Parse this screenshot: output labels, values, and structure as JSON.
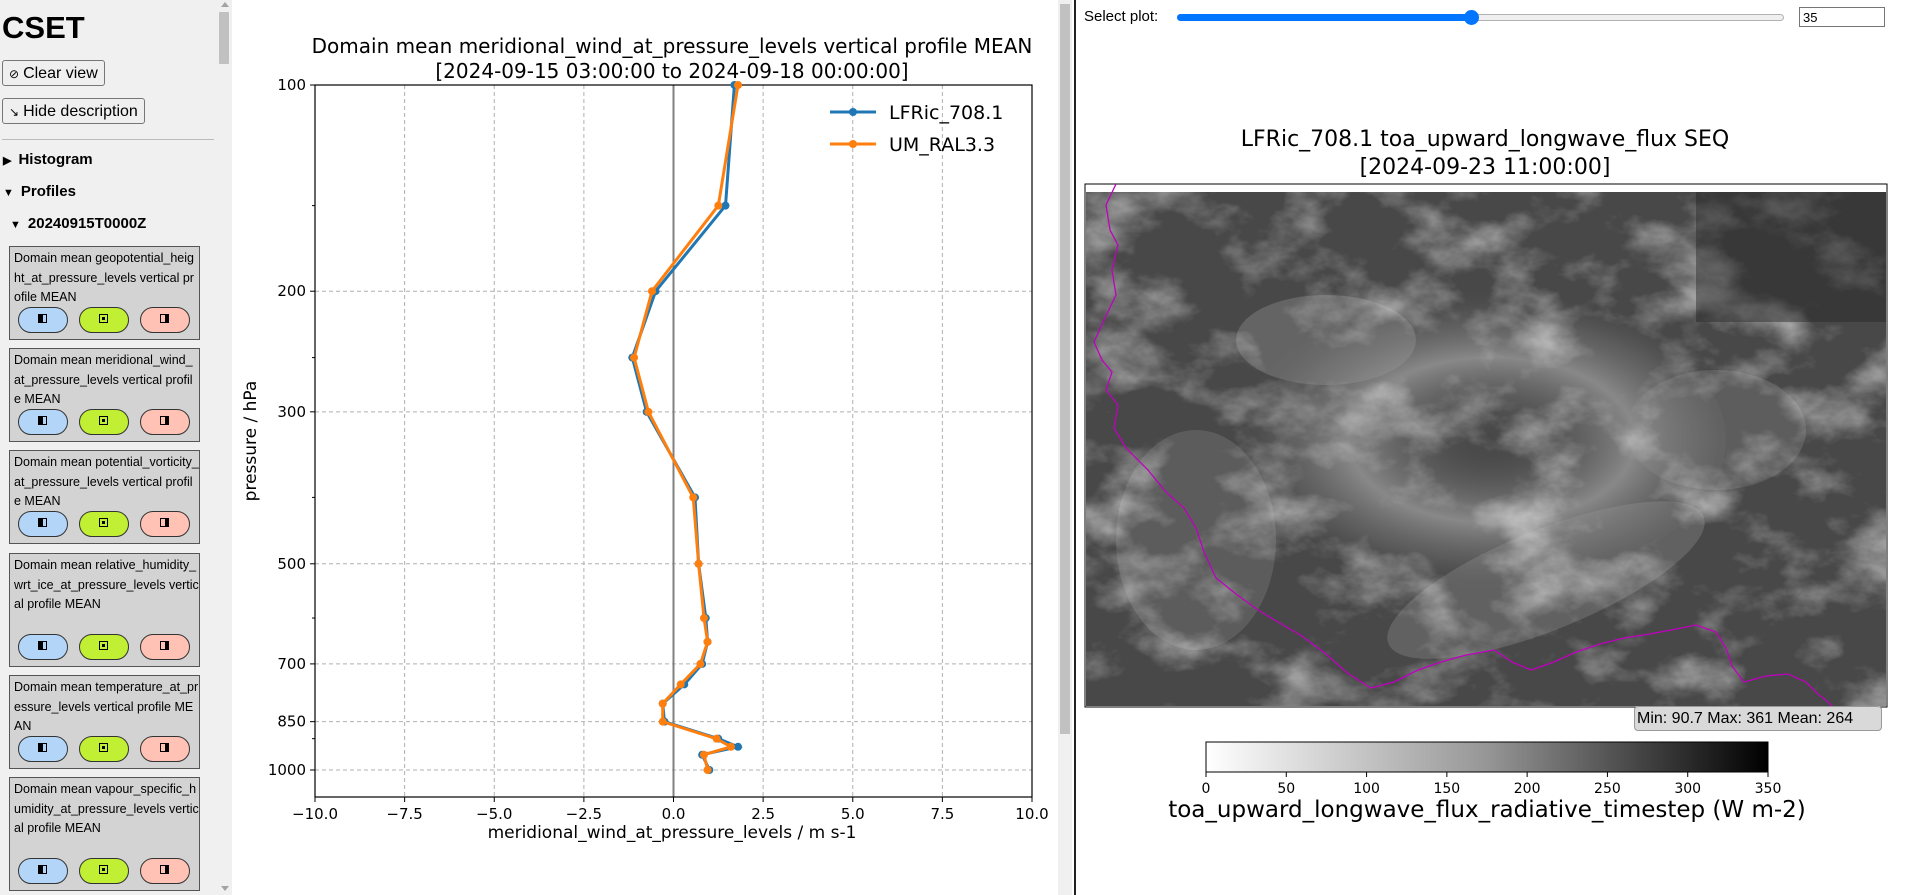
{
  "sidebar": {
    "title": "CSET",
    "clear_view": "Clear view",
    "hide_description": "Hide description",
    "sections": [
      {
        "label": "Histogram",
        "expanded": false
      },
      {
        "label": "Profiles",
        "expanded": true
      }
    ],
    "subgroup": "20240915T0000Z",
    "cards": [
      {
        "title": "Domain mean geopotential_height_at_pressure_levels vertical profile MEAN"
      },
      {
        "title": "Domain mean meridional_wind_at_pressure_levels vertical profile MEAN"
      },
      {
        "title": "Domain mean potential_vorticity_at_pressure_levels vertical profile MEAN"
      },
      {
        "title": "Domain mean relative_humidity_wrt_ice_at_pressure_levels vertical profile MEAN"
      },
      {
        "title": "Domain mean temperature_at_pressure_levels vertical profile MEAN"
      },
      {
        "title": "Domain mean vapour_specific_humidity_at_pressure_levels vertical profile MEAN"
      }
    ],
    "card_buttons": [
      "left-view-icon",
      "both-view-icon",
      "right-view-icon"
    ]
  },
  "chart_data": [
    {
      "type": "line",
      "title": "Domain mean meridional_wind_at_pressure_levels vertical profile MEAN",
      "subtitle": "[2024-09-15 03:00:00 to 2024-09-18 00:00:00]",
      "xlabel": "meridional_wind_at_pressure_levels / m s-1",
      "ylabel": "pressure / hPa",
      "xlim": [
        -10,
        10
      ],
      "ylim": [
        1000,
        100
      ],
      "yscale": "log",
      "xticks": [
        -10,
        -7.5,
        -5,
        -2.5,
        0,
        2.5,
        5,
        7.5,
        10
      ],
      "xtick_labels": [
        "−10.0",
        "−7.5",
        "−5.0",
        "−2.5",
        "0.0",
        "2.5",
        "5.0",
        "7.5",
        "10.0"
      ],
      "yticks": [
        100,
        200,
        300,
        500,
        700,
        850,
        1000
      ],
      "ytick_labels": [
        "100",
        "200",
        "300",
        "500",
        "700",
        "850",
        "1000"
      ],
      "grid": true,
      "legend": "top-right",
      "series": [
        {
          "name": "LFRic_708.1",
          "color": "#1f77b4",
          "y": [
            100,
            150,
            200,
            250,
            300,
            400,
            500,
            600,
            650,
            700,
            750,
            800,
            850,
            900,
            925,
            950,
            1000
          ],
          "x": [
            1.7,
            1.45,
            -0.5,
            -1.15,
            -0.75,
            0.6,
            0.7,
            0.9,
            0.95,
            0.8,
            0.3,
            -0.3,
            -0.25,
            1.25,
            1.8,
            0.8,
            1.0
          ]
        },
        {
          "name": "UM_RAL3.3",
          "color": "#ff7f0e",
          "y": [
            100,
            150,
            200,
            250,
            300,
            400,
            500,
            600,
            650,
            700,
            750,
            800,
            850,
            900,
            925,
            950,
            1000
          ],
          "x": [
            1.8,
            1.25,
            -0.6,
            -1.1,
            -0.7,
            0.55,
            0.7,
            0.85,
            0.95,
            0.75,
            0.2,
            -0.3,
            -0.3,
            1.2,
            1.6,
            0.85,
            0.95
          ]
        }
      ]
    },
    {
      "type": "heatmap",
      "title": "LFRic_708.1 toa_upward_longwave_flux SEQ",
      "subtitle": "[2024-09-23 11:00:00]",
      "colorbar_label": "toa_upward_longwave_flux_radiative_timestep (W m-2)",
      "colorbar_range": [
        0,
        350
      ],
      "colorbar_ticks": [
        0,
        50,
        100,
        150,
        200,
        250,
        300,
        350
      ],
      "colormap": "Greys",
      "coastline_color": "#c000c0"
    }
  ],
  "right_panel": {
    "select_label": "Select plot:",
    "slider_value": "35",
    "slider_fraction": 0.485,
    "stats": "Min: 90.7 Max: 361 Mean: 264"
  }
}
